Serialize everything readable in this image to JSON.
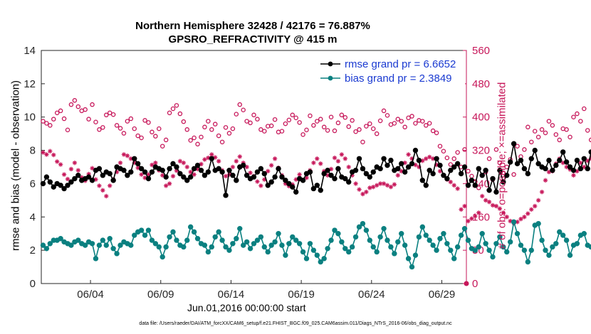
{
  "titles": {
    "line1": "Northern Hemisphere 32428 / 42176 = 76.887%",
    "line2": "GPSRO_REFRACTIVITY @ 415 m"
  },
  "axes": {
    "left_label": "rmse and bias (model - observation)",
    "right_label": "# of obs: o=possible; ×=assimilated",
    "x_caption": "Jun.01,2016 00:00:00 start",
    "x_ticks": [
      "06/04",
      "06/09",
      "06/14",
      "06/19",
      "06/24",
      "06/29"
    ],
    "left_ticks": [
      "0",
      "2",
      "4",
      "6",
      "8",
      "10",
      "12",
      "14"
    ],
    "right_ticks": [
      "0",
      "80",
      "160",
      "240",
      "320",
      "400",
      "480",
      "560"
    ]
  },
  "footer": "data file: /Users/raeder/DAI/ATM_forcXX/CAM6_setup/f.e21.FHIST_BGC.f09_025.CAM6assim.011/Diags_NTrS_2016-06/obs_diag_output.nc",
  "colors": {
    "rmse": "#000000",
    "bias": "#0a8080",
    "obs": "#c7175a",
    "legend_text": "#1a3ad1"
  },
  "chart_data": {
    "type": "line",
    "x_start": "2016-06-01",
    "x_step_days": 0.25,
    "xlim_days": [
      0,
      30.25
    ],
    "y_left_lim": [
      0,
      14
    ],
    "y_right_lim": [
      0,
      560
    ],
    "grid": false,
    "legend_position": "top-right",
    "series": [
      {
        "name": "rmse grand pr = 6.6652",
        "axis": "left",
        "values": [
          6.0,
          6.4,
          6.1,
          5.8,
          6.0,
          5.9,
          5.7,
          5.9,
          6.1,
          6.3,
          6.5,
          6.2,
          6.3,
          6.4,
          6.2,
          6.8,
          6.9,
          6.5,
          6.7,
          6.6,
          6.2,
          7.0,
          6.9,
          6.8,
          6.5,
          6.7,
          7.5,
          7.2,
          6.9,
          6.7,
          6.3,
          6.7,
          7.0,
          6.9,
          6.8,
          6.4,
          6.9,
          7.2,
          7.0,
          6.6,
          6.4,
          6.2,
          6.4,
          6.9,
          7.1,
          6.8,
          6.5,
          6.7,
          7.5,
          6.8,
          6.9,
          6.7,
          5.3,
          6.8,
          6.5,
          6.2,
          7.0,
          7.1,
          6.5,
          6.3,
          6.4,
          6.7,
          6.9,
          6.6,
          5.9,
          6.1,
          6.4,
          6.9,
          6.4,
          6.2,
          6.0,
          5.8,
          5.5,
          6.3,
          6.2,
          6.6,
          6.7,
          5.7,
          5.9,
          5.6,
          6.6,
          6.8,
          6.5,
          6.3,
          6.9,
          6.4,
          6.3,
          6.1,
          6.7,
          6.8,
          7.5,
          6.9,
          6.6,
          6.4,
          6.7,
          7.0,
          6.9,
          7.5,
          7.1,
          7.4,
          6.8,
          6.9,
          7.2,
          6.7,
          7.0,
          7.2,
          8.0,
          7.4,
          6.2,
          5.9,
          6.8,
          6.6,
          7.5,
          7.1,
          6.5,
          6.3,
          6.8,
          7.0,
          7.2,
          6.6,
          7.0,
          5.9,
          6.2,
          5.9,
          6.9,
          6.5,
          6.8,
          5.6,
          6.3,
          5.5,
          6.8,
          6.1,
          6.5,
          7.3,
          8.4,
          7.2,
          7.4,
          6.9,
          6.6,
          7.5,
          8.0,
          7.2,
          7.0,
          6.9,
          7.4,
          6.8,
          7.1,
          7.4,
          7.9,
          7.3,
          7.0,
          6.8,
          7.4,
          6.9,
          7.5,
          6.9,
          7.9,
          7.2,
          7.0,
          7.6,
          7.2,
          6.9,
          7.3,
          8.2,
          7.1,
          7.4,
          6.9,
          7.3,
          8.0,
          7.5,
          7.2,
          7.6,
          7.0,
          6.8,
          7.1,
          7.4,
          7.2,
          7.5,
          6.9,
          7.3,
          7.0,
          6.8,
          7.5,
          6.9,
          7.2,
          6.7,
          6.3,
          6.6,
          6.9,
          7.3,
          7.5,
          6.8,
          6.6,
          6.4,
          6.2
        ]
      },
      {
        "name": "bias grand pr = 2.3849",
        "axis": "left",
        "values": [
          2.3,
          2.1,
          2.4,
          2.6,
          2.6,
          2.7,
          2.5,
          2.4,
          2.3,
          2.5,
          2.6,
          2.4,
          2.3,
          2.5,
          2.4,
          1.5,
          2.3,
          2.6,
          2.3,
          2.7,
          2.1,
          1.8,
          2.3,
          2.5,
          2.4,
          2.3,
          2.9,
          3.1,
          3.2,
          2.9,
          3.2,
          2.6,
          2.4,
          2.2,
          1.6,
          2.2,
          2.8,
          3.1,
          2.6,
          2.3,
          2.2,
          2.6,
          3.4,
          3.1,
          2.7,
          2.4,
          2.3,
          1.9,
          2.2,
          2.8,
          3.1,
          2.6,
          2.2,
          2.0,
          2.4,
          2.7,
          3.3,
          2.3,
          2.5,
          2.1,
          2.4,
          2.6,
          2.8,
          2.2,
          1.9,
          2.3,
          2.5,
          3.0,
          2.3,
          1.7,
          2.4,
          2.8,
          2.6,
          2.4,
          1.9,
          1.5,
          2.4,
          2.0,
          1.7,
          1.3,
          1.5,
          2.1,
          2.6,
          3.2,
          3.0,
          2.5,
          2.1,
          1.9,
          2.2,
          2.8,
          3.4,
          3.6,
          3.2,
          2.6,
          2.2,
          1.9,
          2.8,
          3.3,
          2.6,
          2.2,
          1.8,
          2.5,
          3.0,
          2.3,
          1.5,
          1.0,
          1.7,
          2.8,
          3.4,
          2.9,
          2.6,
          2.3,
          2.0,
          2.7,
          3.0,
          2.4,
          2.0,
          1.5,
          2.2,
          2.9,
          3.3,
          2.6,
          2.1,
          2.0,
          2.2,
          3.0,
          2.4,
          2.0,
          1.6,
          2.4,
          2.8,
          2.2,
          1.9,
          2.5,
          3.7,
          3.0,
          2.3,
          2.0,
          1.3,
          2.0,
          3.5,
          3.6,
          2.6,
          2.0,
          1.7,
          2.2,
          2.4,
          3.1,
          2.9,
          2.6,
          1.7,
          2.3,
          2.4,
          2.9,
          3.0,
          2.3,
          2.2,
          1.8,
          2.3,
          2.2,
          3.3,
          2.2,
          1.9,
          2.4,
          3.0,
          3.5,
          3.6,
          3.0,
          2.4,
          2.1,
          2.3,
          1.9,
          2.6,
          3.0,
          2.8,
          2.4,
          2.3,
          1.8,
          2.6,
          2.4,
          2.8,
          2.6,
          2.4,
          2.5,
          2.2,
          1.8,
          2.2,
          1.5,
          2.4,
          2.6,
          2.4,
          2.5,
          2.4,
          2.3,
          2.2,
          2.4,
          2.6,
          2.3,
          2.2,
          2.1
        ]
      },
      {
        "name": "possible",
        "axis": "right",
        "values": [
          390,
          385,
          380,
          395,
          410,
          415,
          396,
          369,
          430,
          440,
          425,
          415,
          418,
          395,
          430,
          388,
          370,
          375,
          405,
          410,
          406,
          380,
          373,
          361,
          390,
          396,
          372,
          355,
          350,
          392,
          387,
          364,
          354,
          372,
          330,
          345,
          410,
          420,
          428,
          408,
          389,
          370,
          344,
          350,
          335,
          352,
          376,
          390,
          370,
          383,
          355,
          340,
          375,
          361,
          372,
          407,
          430,
          417,
          390,
          386,
          405,
          395,
          370,
          366,
          378,
          379,
          394,
          364,
          366,
          384,
          393,
          405,
          398,
          387,
          358,
          369,
          403,
          380,
          390,
          395,
          376,
          368,
          400,
          367,
          386,
          405,
          399,
          377,
          392,
          365,
          370,
          340,
          378,
          384,
          372,
          360,
          391,
          415,
          404,
          382,
          385,
          395,
          390,
          376,
          398,
          402,
          385,
          392,
          390,
          380,
          385,
          367,
          362,
          330,
          318,
          302,
          286,
          300,
          315,
          280,
          322,
          270,
          258,
          245,
          230,
          260,
          268,
          300,
          250,
          322,
          290,
          266,
          280,
          298,
          262,
          330,
          305,
          322,
          376,
          340,
          366,
          352,
          370,
          362,
          390,
          380,
          358,
          345,
          372,
          370,
          352,
          400,
          408,
          390,
          420,
          368,
          345,
          398,
          362,
          350,
          370,
          402,
          368,
          440,
          424,
          400,
          430,
          380,
          468,
          390,
          362,
          345,
          352,
          340,
          410,
          408,
          398,
          386,
          395,
          370,
          340,
          346,
          380,
          372,
          352,
          320,
          360,
          325,
          348,
          330,
          390,
          422,
          418,
          430,
          402,
          395,
          390,
          374
        ]
      },
      {
        "name": "assimilated",
        "axis": "right",
        "values": [
          315,
          310,
          318,
          309,
          293,
          286,
          262,
          251,
          275,
          290,
          272,
          255,
          247,
          263,
          277,
          250,
          235,
          224,
          210,
          235,
          250,
          268,
          290,
          310,
          307,
          300,
          290,
          278,
          262,
          254,
          262,
          285,
          290,
          272,
          260,
          235,
          240,
          258,
          271,
          294,
          290,
          280,
          268,
          262,
          275,
          287,
          298,
          302,
          310,
          303,
          294,
          272,
          258,
          262,
          280,
          294,
          305,
          290,
          280,
          266,
          258,
          245,
          235,
          250,
          270,
          284,
          300,
          278,
          260,
          240,
          234,
          238,
          250,
          262,
          248,
          254,
          272,
          290,
          300,
          288,
          270,
          260,
          275,
          302,
          294,
          310,
          300,
          280,
          260,
          240,
          226,
          215,
          220,
          230,
          232,
          236,
          240,
          240,
          236,
          232,
          238,
          260,
          270,
          290,
          310,
          300,
          285,
          280,
          295,
          300,
          304,
          300,
          285,
          270,
          260,
          250,
          244,
          236,
          228,
          178,
          186,
          150,
          156,
          162,
          170,
          210,
          200,
          196,
          188,
          186,
          180,
          170,
          160,
          150,
          145,
          148,
          155,
          160,
          168,
          178,
          186,
          200,
          220,
          248,
          268,
          270,
          288,
          300,
          290,
          280,
          274,
          260,
          270,
          290,
          280,
          295,
          300,
          296,
          290,
          280,
          268,
          270,
          276,
          284,
          300,
          304,
          306,
          310,
          320,
          316,
          310,
          304,
          298,
          300,
          290,
          288,
          305,
          310,
          308,
          300,
          298,
          296,
          304,
          310,
          308,
          300,
          288,
          260,
          230,
          220,
          252,
          270,
          290,
          300,
          298,
          303,
          298,
          286
        ]
      }
    ]
  }
}
